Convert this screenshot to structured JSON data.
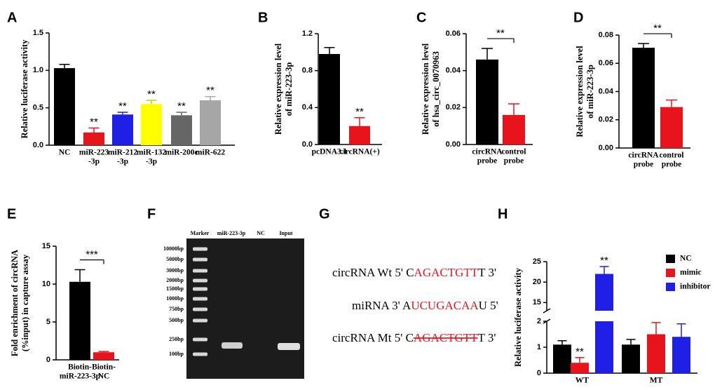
{
  "chart_data": [
    {
      "label": "A",
      "type": "bar",
      "y_label": [
        "Relative luciferase activity"
      ],
      "categories": [
        [
          "NC"
        ],
        [
          "miR-223",
          "-3p"
        ],
        [
          "miR-212",
          "-3p"
        ],
        [
          "miR-132",
          "-3p"
        ],
        [
          "miR-200c"
        ],
        [
          "miR-622"
        ]
      ],
      "values": [
        1.03,
        0.17,
        0.41,
        0.55,
        0.4,
        0.6
      ],
      "errors": [
        0.05,
        0.06,
        0.03,
        0.05,
        0.04,
        0.05
      ],
      "colors": [
        "#000000",
        "#e8141c",
        "#1f1fe6",
        "#ffff00",
        "#666666",
        "#a6a6a6"
      ],
      "annotations": [
        null,
        "**",
        "**",
        "**",
        "**",
        "**"
      ],
      "ylim": [
        0,
        1.5
      ],
      "yticks": [
        {
          "value": 0,
          "label": "0.0"
        },
        0.5,
        {
          "value": 1,
          "label": "1.0"
        },
        1.5
      ]
    },
    {
      "label": "B",
      "type": "bar",
      "y_label": [
        "Relative expression level",
        "of miR-223-3p"
      ],
      "categories": [
        [
          "pcDNA3.1"
        ],
        [
          "circRNA(+)"
        ]
      ],
      "values": [
        0.98,
        0.2
      ],
      "errors": [
        0.07,
        0.09
      ],
      "colors": [
        "#000000",
        "#e8141c"
      ],
      "annotations": [
        null,
        "**"
      ],
      "ylim": [
        0,
        1.2
      ],
      "yticks": [
        {
          "value": 0,
          "label": "0.0"
        },
        0.4,
        0.8,
        1.2
      ]
    },
    {
      "label": "C",
      "type": "bar",
      "y_label": [
        "Relative expression level",
        "of hsa_circ_0070963"
      ],
      "categories": [
        [
          "circRNA",
          "probe"
        ],
        [
          "control",
          "probe"
        ]
      ],
      "values": [
        0.046,
        0.016
      ],
      "errors": [
        0.006,
        0.006
      ],
      "colors": [
        "#000000",
        "#e8141c"
      ],
      "bracket": "**",
      "ylim": [
        0,
        0.06
      ],
      "yticks": [
        {
          "value": 0,
          "label": "0.00"
        },
        0.02,
        0.04,
        0.06
      ]
    },
    {
      "label": "D",
      "type": "bar",
      "y_label": [
        "Relative expression level",
        "of miR-223-3p"
      ],
      "categories": [
        [
          "circRNA",
          "probe"
        ],
        [
          "control",
          "probe"
        ]
      ],
      "values": [
        0.071,
        0.029
      ],
      "errors": [
        0.003,
        0.005
      ],
      "colors": [
        "#000000",
        "#e8141c"
      ],
      "bracket": "**",
      "ylim": [
        0,
        0.08
      ],
      "yticks": [
        {
          "value": 0,
          "label": "0.00"
        },
        0.02,
        0.04,
        0.06,
        0.08
      ]
    },
    {
      "label": "E",
      "type": "bar",
      "y_label": [
        "Fold enrichment of circRNA",
        "(%input) in capture assay"
      ],
      "categories": [
        [
          "Biotin-",
          "miR-223-3p"
        ],
        [
          "Biotin-",
          "NC"
        ]
      ],
      "values": [
        10.3,
        1.0
      ],
      "errors": [
        1.6,
        0.1
      ],
      "colors": [
        "#000000",
        "#e8141c"
      ],
      "bracket": "***",
      "ylim": [
        0,
        15
      ],
      "yticks": [
        0,
        5,
        10,
        15
      ]
    },
    {
      "label": "H",
      "type": "bar",
      "y_label": [
        "Relative luciferase activity"
      ],
      "categories": [
        [
          "WT"
        ],
        [
          "MT"
        ]
      ],
      "series": [
        {
          "name": "NC",
          "color": "#000000",
          "values": [
            1.1,
            1.1
          ],
          "errors": [
            0.15,
            0.2
          ],
          "annotations": [
            null,
            null
          ]
        },
        {
          "name": "mimic",
          "color": "#e8141c",
          "values": [
            0.4,
            1.5
          ],
          "errors": [
            0.2,
            0.45
          ],
          "annotations": [
            "**",
            null
          ]
        },
        {
          "name": "inhibitor",
          "color": "#1f1fe6",
          "values": [
            22,
            1.4
          ],
          "errors": [
            1.8,
            0.5
          ],
          "annotations": [
            "**",
            null
          ]
        }
      ],
      "ylim": [
        0,
        25
      ],
      "axis_break": [
        2,
        13
      ],
      "yticks": [
        0,
        1,
        2,
        15,
        20,
        25
      ]
    }
  ],
  "gel": {
    "label": "F",
    "lanes": [
      "Marker",
      "miR-223-3p",
      "NC",
      "Input"
    ],
    "ladder": [
      "10000bp",
      "5000bp",
      "3000bp",
      "2000bp",
      "1500bp",
      "1000bp",
      "750bp",
      "500bp",
      "250bp",
      "100bp"
    ]
  },
  "sequences": {
    "label": "G",
    "highlight_color": "#e8141c",
    "lines": [
      {
        "segments": [
          "circRNA Wt 5' C",
          "AGACTGTT",
          "T 3'"
        ],
        "struck": false
      },
      {
        "segments": [
          "miRNA 3' A",
          "UCUGACAA",
          "U 5'"
        ],
        "struck": false
      },
      {
        "segments": [
          "circRNA Mt 5' C",
          "AGACTGTT",
          "T 3'"
        ],
        "struck": true
      }
    ]
  }
}
